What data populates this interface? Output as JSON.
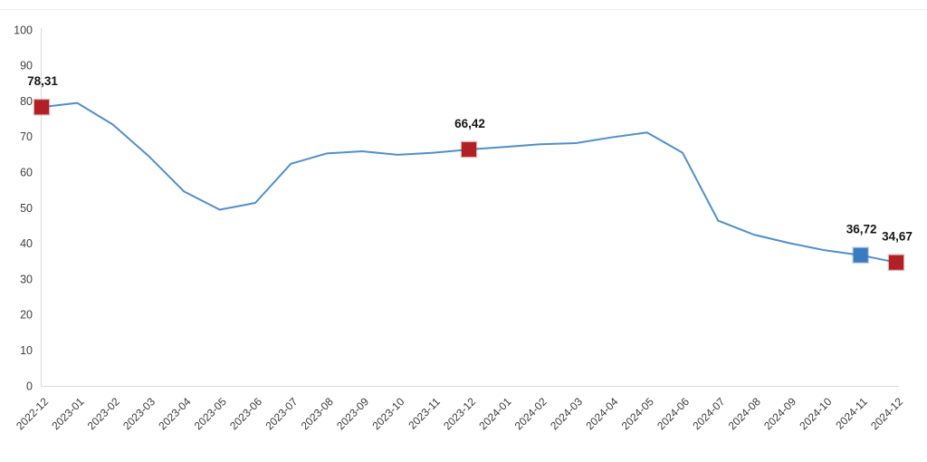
{
  "page": {
    "background": "#ffffff",
    "top_divider_color": "#ececec"
  },
  "chart_data": {
    "type": "line",
    "title": "",
    "xlabel": "",
    "ylabel": "",
    "categories": [
      "2022-12",
      "2023-01",
      "2023-02",
      "2023-03",
      "2023-04",
      "2023-05",
      "2023-06",
      "2023-07",
      "2023-08",
      "2023-09",
      "2023-10",
      "2023-11",
      "2023-12",
      "2024-01",
      "2024-02",
      "2024-03",
      "2024-04",
      "2024-05",
      "2024-06",
      "2024-07",
      "2024-08",
      "2024-09",
      "2024-10",
      "2024-11",
      "2024-12"
    ],
    "values": [
      78.31,
      79.5,
      73.4,
      64.6,
      54.6,
      49.5,
      51.4,
      62.4,
      65.3,
      65.9,
      64.9,
      65.5,
      66.42,
      67.1,
      67.9,
      68.2,
      69.8,
      71.2,
      65.5,
      46.4,
      42.5,
      40.1,
      38.1,
      36.72,
      34.67
    ],
    "ylim": [
      0,
      100
    ],
    "ytick_step": 10,
    "grid": false,
    "legend": false,
    "annotated_points": [
      {
        "index": 0,
        "category": "2022-12",
        "value": 78.31,
        "label": "78,31",
        "marker_color": "#b02126"
      },
      {
        "index": 12,
        "category": "2023-12",
        "value": 66.42,
        "label": "66,42",
        "marker_color": "#b02126"
      },
      {
        "index": 23,
        "category": "2024-11",
        "value": 36.72,
        "label": "36,72",
        "marker_color": "#3a7abf"
      },
      {
        "index": 24,
        "category": "2024-12",
        "value": 34.67,
        "label": "34,67",
        "marker_color": "#b02126"
      }
    ],
    "colors": {
      "line": "#4f8fcc",
      "marker_red": "#b02126",
      "marker_blue": "#3a7abf",
      "axis_line": "#d9d9d9",
      "y_tick_label": "#404040",
      "x_tick_label": "#3a3a3a",
      "data_label": "#161616"
    }
  }
}
